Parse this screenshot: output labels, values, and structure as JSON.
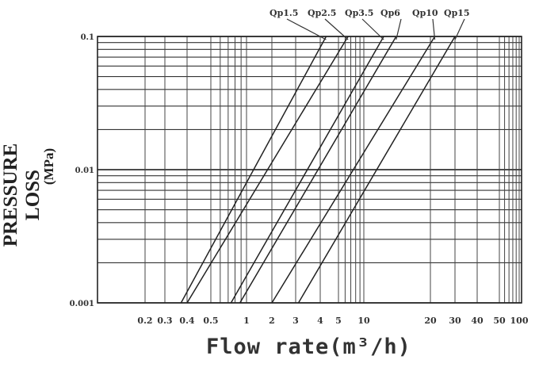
{
  "chart_data": {
    "type": "line",
    "title": "",
    "xlabel": "Flow rate(m³/h)",
    "ylabel": "PRESSURE LOSS",
    "ylabel_unit": "(MPa)",
    "x_scale": "log",
    "y_scale": "log",
    "xlim": [
      0.1,
      100
    ],
    "ylim": [
      0.001,
      0.1
    ],
    "grid": true,
    "x_ticks": [
      "0.2",
      "0.3",
      "0.4",
      "0.5",
      "1",
      "2",
      "3",
      "4",
      "5",
      "10",
      "20",
      "30",
      "40",
      "50",
      "100"
    ],
    "y_ticks": [
      "0.1",
      "0.01",
      "0.001"
    ],
    "series": [
      {
        "name": "Qp1.5",
        "x": [
          0.37,
          4.3
        ],
        "y": [
          0.001,
          0.1
        ]
      },
      {
        "name": "Qp2.5",
        "x": [
          0.4,
          6.5
        ],
        "y": [
          0.001,
          0.1
        ]
      },
      {
        "name": "Qp3.5",
        "x": [
          0.74,
          12.3
        ],
        "y": [
          0.001,
          0.1
        ]
      },
      {
        "name": "Qp6",
        "x": [
          0.88,
          14
        ],
        "y": [
          0.001,
          0.1
        ]
      },
      {
        "name": "Qp10",
        "x": [
          2.0,
          21.5
        ],
        "y": [
          0.001,
          0.1
        ]
      },
      {
        "name": "Qp15",
        "x": [
          3.1,
          30
        ],
        "y": [
          0.001,
          0.1
        ]
      }
    ],
    "legend": "top, labels with leader lines"
  }
}
